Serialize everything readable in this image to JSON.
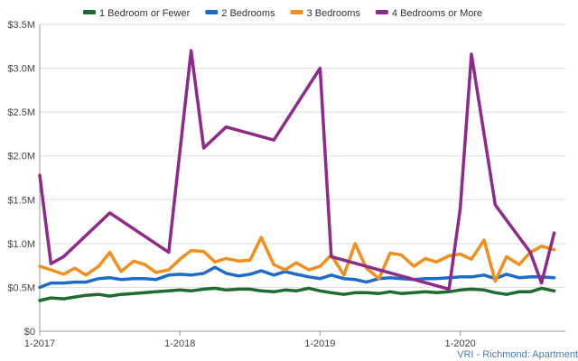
{
  "chart_data": {
    "type": "line",
    "ylim": [
      0,
      3500000
    ],
    "y_ticks": [
      {
        "value": 0,
        "label": "$0"
      },
      {
        "value": 500000,
        "label": "$0.5M"
      },
      {
        "value": 1000000,
        "label": "$1.0M"
      },
      {
        "value": 1500000,
        "label": "$1.5M"
      },
      {
        "value": 2000000,
        "label": "$2.0M"
      },
      {
        "value": 2500000,
        "label": "$2.5M"
      },
      {
        "value": 3000000,
        "label": "$3.0M"
      },
      {
        "value": 3500000,
        "label": "$3.5M"
      }
    ],
    "xlim": [
      2017.0,
      2020.75
    ],
    "x_ticks": [
      {
        "value": 2017.0,
        "label": "1-2017"
      },
      {
        "value": 2018.0,
        "label": "1-2018"
      },
      {
        "value": 2019.0,
        "label": "1-2019"
      },
      {
        "value": 2020.0,
        "label": "1-2020"
      }
    ],
    "grid": true,
    "legend_position": "top",
    "series": [
      {
        "name": "1 Bedroom or Fewer",
        "color": "#1e6b2e",
        "points": [
          [
            2017.0,
            350000
          ],
          [
            2017.08,
            380000
          ],
          [
            2017.17,
            370000
          ],
          [
            2017.25,
            390000
          ],
          [
            2017.33,
            410000
          ],
          [
            2017.42,
            420000
          ],
          [
            2017.5,
            400000
          ],
          [
            2017.58,
            420000
          ],
          [
            2017.67,
            430000
          ],
          [
            2017.75,
            440000
          ],
          [
            2017.83,
            450000
          ],
          [
            2017.92,
            460000
          ],
          [
            2018.0,
            470000
          ],
          [
            2018.08,
            460000
          ],
          [
            2018.17,
            480000
          ],
          [
            2018.25,
            490000
          ],
          [
            2018.33,
            470000
          ],
          [
            2018.42,
            480000
          ],
          [
            2018.5,
            480000
          ],
          [
            2018.58,
            460000
          ],
          [
            2018.67,
            450000
          ],
          [
            2018.75,
            470000
          ],
          [
            2018.83,
            460000
          ],
          [
            2018.92,
            490000
          ],
          [
            2019.0,
            460000
          ],
          [
            2019.08,
            440000
          ],
          [
            2019.17,
            420000
          ],
          [
            2019.25,
            440000
          ],
          [
            2019.33,
            440000
          ],
          [
            2019.42,
            430000
          ],
          [
            2019.5,
            450000
          ],
          [
            2019.58,
            430000
          ],
          [
            2019.67,
            440000
          ],
          [
            2019.75,
            450000
          ],
          [
            2019.83,
            440000
          ],
          [
            2019.92,
            450000
          ],
          [
            2020.0,
            470000
          ],
          [
            2020.08,
            480000
          ],
          [
            2020.17,
            470000
          ],
          [
            2020.25,
            440000
          ],
          [
            2020.33,
            420000
          ],
          [
            2020.42,
            450000
          ],
          [
            2020.5,
            450000
          ],
          [
            2020.58,
            490000
          ],
          [
            2020.67,
            460000
          ]
        ]
      },
      {
        "name": "2 Bedrooms",
        "color": "#1f6cc7",
        "points": [
          [
            2017.0,
            500000
          ],
          [
            2017.08,
            550000
          ],
          [
            2017.17,
            550000
          ],
          [
            2017.25,
            560000
          ],
          [
            2017.33,
            560000
          ],
          [
            2017.42,
            600000
          ],
          [
            2017.5,
            610000
          ],
          [
            2017.58,
            590000
          ],
          [
            2017.67,
            600000
          ],
          [
            2017.75,
            600000
          ],
          [
            2017.83,
            590000
          ],
          [
            2017.92,
            640000
          ],
          [
            2018.0,
            650000
          ],
          [
            2018.08,
            640000
          ],
          [
            2018.17,
            660000
          ],
          [
            2018.25,
            730000
          ],
          [
            2018.33,
            660000
          ],
          [
            2018.42,
            630000
          ],
          [
            2018.5,
            650000
          ],
          [
            2018.58,
            690000
          ],
          [
            2018.67,
            640000
          ],
          [
            2018.75,
            680000
          ],
          [
            2018.83,
            650000
          ],
          [
            2018.92,
            620000
          ],
          [
            2019.0,
            600000
          ],
          [
            2019.08,
            640000
          ],
          [
            2019.17,
            600000
          ],
          [
            2019.25,
            590000
          ],
          [
            2019.33,
            560000
          ],
          [
            2019.42,
            600000
          ],
          [
            2019.5,
            610000
          ],
          [
            2019.58,
            600000
          ],
          [
            2019.67,
            590000
          ],
          [
            2019.75,
            600000
          ],
          [
            2019.83,
            600000
          ],
          [
            2019.92,
            610000
          ],
          [
            2020.0,
            620000
          ],
          [
            2020.08,
            620000
          ],
          [
            2020.17,
            640000
          ],
          [
            2020.25,
            600000
          ],
          [
            2020.33,
            650000
          ],
          [
            2020.42,
            610000
          ],
          [
            2020.5,
            620000
          ],
          [
            2020.58,
            620000
          ],
          [
            2020.67,
            610000
          ]
        ]
      },
      {
        "name": "3 Bedrooms",
        "color": "#f28e1c",
        "points": [
          [
            2017.0,
            740000
          ],
          [
            2017.08,
            700000
          ],
          [
            2017.17,
            650000
          ],
          [
            2017.25,
            720000
          ],
          [
            2017.33,
            640000
          ],
          [
            2017.42,
            740000
          ],
          [
            2017.5,
            900000
          ],
          [
            2017.58,
            680000
          ],
          [
            2017.67,
            800000
          ],
          [
            2017.75,
            760000
          ],
          [
            2017.83,
            670000
          ],
          [
            2017.92,
            700000
          ],
          [
            2018.0,
            820000
          ],
          [
            2018.08,
            920000
          ],
          [
            2018.17,
            910000
          ],
          [
            2018.25,
            790000
          ],
          [
            2018.33,
            830000
          ],
          [
            2018.42,
            800000
          ],
          [
            2018.5,
            810000
          ],
          [
            2018.58,
            1070000
          ],
          [
            2018.67,
            760000
          ],
          [
            2018.75,
            700000
          ],
          [
            2018.83,
            780000
          ],
          [
            2018.92,
            700000
          ],
          [
            2019.0,
            740000
          ],
          [
            2019.08,
            870000
          ],
          [
            2019.17,
            640000
          ],
          [
            2019.25,
            1000000
          ],
          [
            2019.33,
            720000
          ],
          [
            2019.42,
            600000
          ],
          [
            2019.5,
            890000
          ],
          [
            2019.58,
            870000
          ],
          [
            2019.67,
            740000
          ],
          [
            2019.75,
            830000
          ],
          [
            2019.83,
            790000
          ],
          [
            2019.92,
            860000
          ],
          [
            2020.0,
            880000
          ],
          [
            2020.08,
            820000
          ],
          [
            2020.17,
            1040000
          ],
          [
            2020.25,
            570000
          ],
          [
            2020.33,
            850000
          ],
          [
            2020.42,
            760000
          ],
          [
            2020.5,
            900000
          ],
          [
            2020.58,
            970000
          ],
          [
            2020.67,
            930000
          ]
        ]
      },
      {
        "name": "4 Bedrooms or More",
        "color": "#8e2a8a",
        "points": [
          [
            2017.0,
            1780000
          ],
          [
            2017.08,
            770000
          ],
          [
            2017.17,
            850000
          ],
          [
            2017.5,
            1350000
          ],
          [
            2017.92,
            900000
          ],
          [
            2018.08,
            3200000
          ],
          [
            2018.17,
            2090000
          ],
          [
            2018.33,
            2330000
          ],
          [
            2018.67,
            2180000
          ],
          [
            2019.0,
            3000000
          ],
          [
            2019.08,
            850000
          ],
          [
            2019.92,
            480000
          ],
          [
            2020.0,
            1400000
          ],
          [
            2020.08,
            3160000
          ],
          [
            2020.25,
            1440000
          ],
          [
            2020.5,
            900000
          ],
          [
            2020.58,
            550000
          ],
          [
            2020.67,
            1120000
          ]
        ]
      }
    ],
    "annotation": "VRI - Richmond: Apartment"
  }
}
